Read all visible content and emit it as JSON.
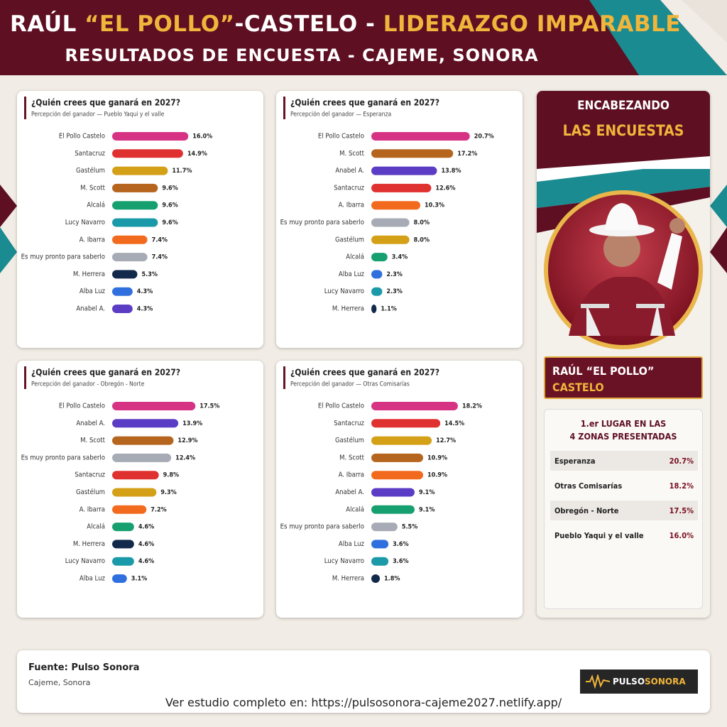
{
  "header": {
    "title_parts": [
      "RAÚL",
      "“EL POLLO”",
      "-CASTELO",
      "-",
      "LIDERAZGO IMPARABLE"
    ],
    "subtitle": "RESULTADOS DE ENCUESTA - CAJEME, SONORA"
  },
  "chart_data": [
    {
      "type": "bar",
      "title": "¿Quién crees que ganará en 2027?",
      "subtitle": "Percepción del ganador — Pueblo Yaqui y el valle",
      "categories": [
        "El Pollo Castelo",
        "Santacruz",
        "Gastélum",
        "M. Scott",
        "Alcalá",
        "Lucy Navarro",
        "A. Ibarra",
        "Es muy pronto para saberlo",
        "M. Herrera",
        "Alba Luz",
        "Anabel A."
      ],
      "values": [
        16.0,
        14.9,
        11.7,
        9.6,
        9.6,
        9.6,
        7.4,
        7.4,
        5.3,
        4.3,
        4.3
      ],
      "value_labels": [
        "16.0%",
        "14.9%",
        "11.7%",
        "9.6%",
        "9.6%",
        "9.6%",
        "7.4%",
        "7.4%",
        "5.3%",
        "4.3%",
        "4.3%"
      ],
      "colors": [
        "#d63384",
        "#e03131",
        "#d4a017",
        "#b5651d",
        "#16a06f",
        "#1a9aa8",
        "#f26a1d",
        "#a6abb5",
        "#13294b",
        "#2f6fde",
        "#5b3cc4"
      ]
    },
    {
      "type": "bar",
      "title": "¿Quién crees que ganará en 2027?",
      "subtitle": "Percepción del ganador — Esperanza",
      "categories": [
        "El Pollo Castelo",
        "M. Scott",
        "Anabel A.",
        "Santacruz",
        "A. Ibarra",
        "Es muy pronto para saberlo",
        "Gastélum",
        "Alcalá",
        "Alba Luz",
        "Lucy Navarro",
        "M. Herrera"
      ],
      "values": [
        20.7,
        17.2,
        13.8,
        12.6,
        10.3,
        8.0,
        8.0,
        3.4,
        2.3,
        2.3,
        1.1
      ],
      "value_labels": [
        "20.7%",
        "17.2%",
        "13.8%",
        "12.6%",
        "10.3%",
        "8.0%",
        "8.0%",
        "3.4%",
        "2.3%",
        "2.3%",
        "1.1%"
      ],
      "colors": [
        "#d63384",
        "#b5651d",
        "#5b3cc4",
        "#e03131",
        "#f26a1d",
        "#a6abb5",
        "#d4a017",
        "#16a06f",
        "#2f6fde",
        "#1a9aa8",
        "#13294b"
      ]
    },
    {
      "type": "bar",
      "title": "¿Quién crees que ganará en 2027?",
      "subtitle": "Percepción del ganador - Obregón - Norte",
      "categories": [
        "El Pollo Castelo",
        "Anabel A.",
        "M. Scott",
        "Es muy pronto para saberlo",
        "Santacruz",
        "Gastélum",
        "A. Ibarra",
        "Alcalá",
        "M. Herrera",
        "Lucy Navarro",
        "Alba Luz"
      ],
      "values": [
        17.5,
        13.9,
        12.9,
        12.4,
        9.8,
        9.3,
        7.2,
        4.6,
        4.6,
        4.6,
        3.1
      ],
      "value_labels": [
        "17.5%",
        "13.9%",
        "12.9%",
        "12.4%",
        "9.8%",
        "9.3%",
        "7.2%",
        "4.6%",
        "4.6%",
        "4.6%",
        "3.1%"
      ],
      "colors": [
        "#d63384",
        "#5b3cc4",
        "#b5651d",
        "#a6abb5",
        "#e03131",
        "#d4a017",
        "#f26a1d",
        "#16a06f",
        "#13294b",
        "#1a9aa8",
        "#2f6fde"
      ]
    },
    {
      "type": "bar",
      "title": "¿Quién crees que ganará en 2027?",
      "subtitle": "Percepción del ganador — Otras Comisarías",
      "categories": [
        "El Pollo Castelo",
        "Santacruz",
        "Gastélum",
        "M. Scott",
        "A. Ibarra",
        "Anabel A.",
        "Alcalá",
        "Es muy pronto para saberlo",
        "Alba Luz",
        "Lucy Navarro",
        "M. Herrera"
      ],
      "values": [
        18.2,
        14.5,
        12.7,
        10.9,
        10.9,
        9.1,
        9.1,
        5.5,
        3.6,
        3.6,
        1.8
      ],
      "value_labels": [
        "18.2%",
        "14.5%",
        "12.7%",
        "10.9%",
        "10.9%",
        "9.1%",
        "9.1%",
        "5.5%",
        "3.6%",
        "3.6%",
        "1.8%"
      ],
      "colors": [
        "#d63384",
        "#e03131",
        "#d4a017",
        "#b5651d",
        "#f26a1d",
        "#5b3cc4",
        "#16a06f",
        "#a6abb5",
        "#2f6fde",
        "#1a9aa8",
        "#13294b"
      ]
    }
  ],
  "sidebar": {
    "heading_1": "ENCABEZANDO",
    "heading_2": "LAS ENCUESTAS",
    "name_1": "RAÚL “EL POLLO”",
    "name_2": "CASTELO",
    "box_title_1": "1.er LUGAR EN LAS",
    "box_title_2": "4 ZONAS PRESENTADAS",
    "rows": [
      [
        "Esperanza",
        "20.7%"
      ],
      [
        "Otras Comisarías",
        "18.2%"
      ],
      [
        "Obregón - Norte",
        "17.5%"
      ],
      [
        "Pueblo Yaqui y el valle",
        "16.0%"
      ]
    ]
  },
  "footer": {
    "source": "Fuente: Pulso Sonora",
    "place": "Cajeme, Sonora",
    "logo_1": "PULSO",
    "logo_2": "SONORA",
    "link": "Ver estudio completo en: https://pulsosonora-cajeme2027.netlify.app/"
  }
}
